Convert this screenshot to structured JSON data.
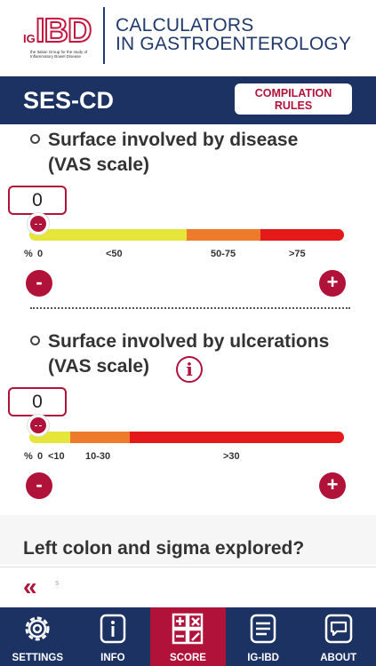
{
  "header": {
    "logo_ig": "IG",
    "logo_ibd": "IBD",
    "logo_subtitle": "the Italian Group for the study of Inflammatory Bowel Disease",
    "title_line1": "CALCULATORS",
    "title_line2": "IN GASTROENTEROLOGY"
  },
  "titlebar": {
    "title": "SES-CD",
    "rules_line1": "COMPILATION",
    "rules_line2": "RULES"
  },
  "section1": {
    "title_line1": "Surface involved by disease",
    "title_line2": "(VAS scale)",
    "value": "0",
    "percent": "%",
    "labels": [
      "0",
      "<50",
      "50-75",
      ">75"
    ],
    "minus": "-",
    "plus": "+"
  },
  "section2": {
    "title_line1": "Surface involved by ulcerations",
    "title_line2": "(VAS scale)",
    "info": "i",
    "value": "0",
    "percent": "%",
    "labels": [
      "0",
      "<10",
      "10-30",
      ">30"
    ],
    "minus": "-",
    "plus": "+"
  },
  "question": "Left colon and sigma explored?",
  "back_row": {
    "back_icon": "«",
    "trailing_char": "s"
  },
  "nav": {
    "items": [
      {
        "label": "SETTINGS",
        "icon": "gear-icon"
      },
      {
        "label": "INFO",
        "icon": "info-icon"
      },
      {
        "label": "SCORE",
        "icon": "calculator-icon"
      },
      {
        "label": "IG-IBD",
        "icon": "document-icon"
      },
      {
        "label": "ABOUT",
        "icon": "chat-bubble-icon"
      }
    ],
    "active": "SCORE"
  },
  "colors": {
    "navy": "#1c3263",
    "accent": "#b0123a",
    "bar_yellow": "#e6e63a",
    "bar_orange": "#ee7a2c",
    "bar_red": "#e41919"
  }
}
